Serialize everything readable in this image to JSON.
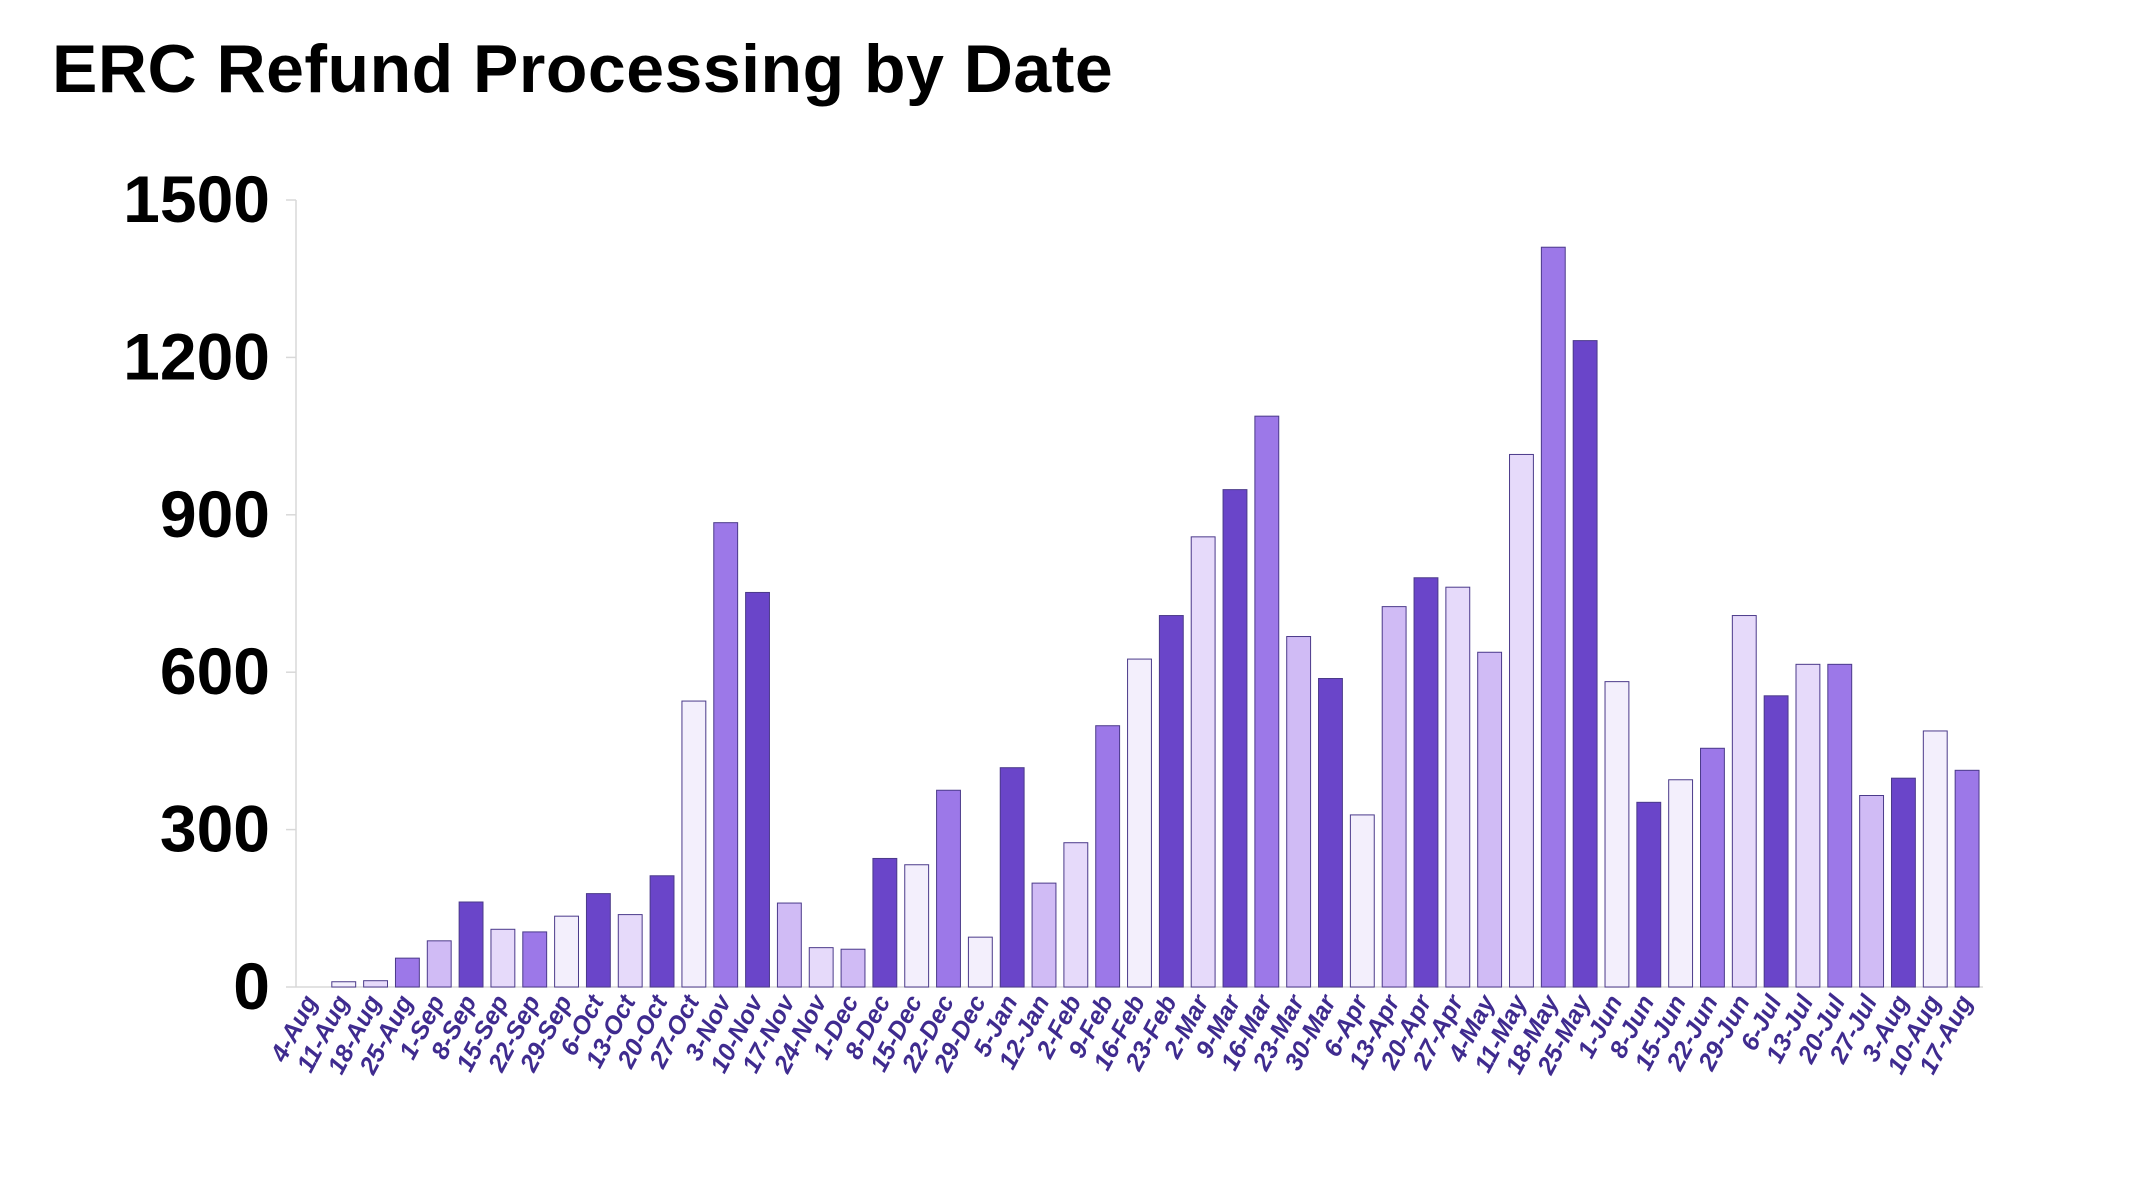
{
  "chart_data": {
    "type": "bar",
    "title": "ERC Refund Processing by Date",
    "xlabel": "",
    "ylabel": "",
    "ylim": [
      0,
      1500
    ],
    "yticks": [
      0,
      300,
      600,
      900,
      1200,
      1500
    ],
    "grid": false,
    "legend": "none",
    "categories": [
      "4-Aug",
      "11-Aug",
      "18-Aug",
      "25-Aug",
      "1-Sep",
      "8-Sep",
      "15-Sep",
      "22-Sep",
      "29-Sep",
      "6-Oct",
      "13-Oct",
      "20-Oct",
      "27-Oct",
      "3-Nov",
      "10-Nov",
      "17-Nov",
      "24-Nov",
      "1-Dec",
      "8-Dec",
      "15-Dec",
      "22-Dec",
      "29-Dec",
      "5-Jan",
      "12-Jan",
      "2-Feb",
      "9-Feb",
      "16-Feb",
      "23-Feb",
      "2-Mar",
      "9-Mar",
      "16-Mar",
      "23-Mar",
      "30-Mar",
      "6-Apr",
      "13-Apr",
      "20-Apr",
      "27-Apr",
      "4-May",
      "11-May",
      "18-May",
      "25-May",
      "1-Jun",
      "8-Jun",
      "15-Jun",
      "22-Jun",
      "29-Jun",
      "6-Jul",
      "13-Jul",
      "20-Jul",
      "27-Jul",
      "3-Aug",
      "10-Aug",
      "17-Aug"
    ],
    "values": [
      0,
      10,
      12,
      55,
      88,
      162,
      110,
      105,
      135,
      178,
      138,
      212,
      545,
      885,
      752,
      160,
      75,
      72,
      245,
      233,
      375,
      95,
      418,
      198,
      275,
      498,
      625,
      708,
      858,
      948,
      1088,
      668,
      588,
      328,
      725,
      780,
      762,
      638,
      1015,
      1410,
      1232,
      582,
      352,
      395,
      455,
      708,
      555,
      615,
      615,
      365,
      398,
      488,
      413
    ],
    "bar_colors": [
      "#f3effc",
      "#f3effc",
      "#e6dafa",
      "#9c78e8",
      "#d0bbf5",
      "#6a45c9",
      "#e6dafa",
      "#9c78e8",
      "#f3effc",
      "#6a45c9",
      "#e6dafa",
      "#6a45c9",
      "#f3effc",
      "#9c78e8",
      "#6a45c9",
      "#d0bbf5",
      "#e6dafa",
      "#d0bbf5",
      "#6a45c9",
      "#f3effc",
      "#9c78e8",
      "#f3effc",
      "#6a45c9",
      "#d0bbf5",
      "#e6dafa",
      "#9c78e8",
      "#f3effc",
      "#6a45c9",
      "#e6dafa",
      "#6a45c9",
      "#9c78e8",
      "#d0bbf5",
      "#6a45c9",
      "#f3effc",
      "#d0bbf5",
      "#6a45c9",
      "#e6dafa",
      "#d0bbf5",
      "#e6dafa",
      "#9c78e8",
      "#6a45c9",
      "#f3effc",
      "#6a45c9",
      "#f3effc",
      "#9c78e8",
      "#e6dafa",
      "#6a45c9",
      "#e6dafa",
      "#9c78e8",
      "#d0bbf5",
      "#6a45c9",
      "#f3effc",
      "#9c78e8"
    ],
    "colors": {
      "bar_stroke": "#4b3a8a",
      "x_tick_text": "#3f2b8f",
      "y_tick_text": "#000000",
      "axis": "#d8d8d8"
    }
  }
}
